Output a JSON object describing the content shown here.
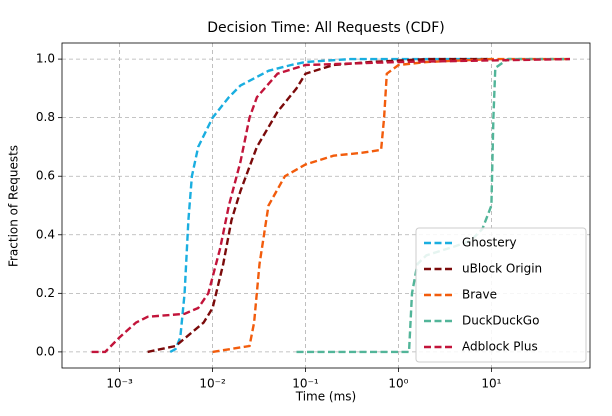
{
  "chart_data": {
    "type": "line",
    "title": "Decision Time: All Requests (CDF)",
    "x_label": "Time (ms)",
    "y_label": "Fraction of Requests",
    "x_scale": "log",
    "xlim": [
      0.00024,
      115
    ],
    "ylim": [
      -0.055,
      1.055
    ],
    "xticks": [
      {
        "value": 0.001,
        "label": "10⁻³"
      },
      {
        "value": 0.01,
        "label": "10⁻²"
      },
      {
        "value": 0.1,
        "label": "10⁻¹"
      },
      {
        "value": 1,
        "label": "10⁰"
      },
      {
        "value": 10,
        "label": "10¹"
      }
    ],
    "yticks": [
      {
        "value": 0,
        "label": "0.0"
      },
      {
        "value": 0.2,
        "label": "0.2"
      },
      {
        "value": 0.4,
        "label": "0.4"
      },
      {
        "value": 0.6,
        "label": "0.6"
      },
      {
        "value": 0.8,
        "label": "0.8"
      },
      {
        "value": 1,
        "label": "1.0"
      }
    ],
    "grid": true,
    "legend": "lower right",
    "series": [
      {
        "name": "Ghostery",
        "color": "#1aaee0",
        "x": [
          0.0035,
          0.004,
          0.0045,
          0.005,
          0.0055,
          0.006,
          0.007,
          0.01,
          0.015,
          0.02,
          0.04,
          0.07,
          0.1,
          0.3,
          10
        ],
        "values": [
          0,
          0.01,
          0.05,
          0.2,
          0.45,
          0.6,
          0.7,
          0.8,
          0.87,
          0.91,
          0.96,
          0.98,
          0.99,
          1,
          1
        ]
      },
      {
        "name": "uBlock Origin",
        "color": "#7b0a0a",
        "x": [
          0.002,
          0.004,
          0.008,
          0.01,
          0.013,
          0.016,
          0.02,
          0.03,
          0.05,
          0.08,
          0.1,
          0.2,
          0.5,
          2,
          10
        ],
        "values": [
          0,
          0.02,
          0.1,
          0.15,
          0.3,
          0.45,
          0.55,
          0.7,
          0.82,
          0.9,
          0.95,
          0.98,
          0.99,
          1,
          1
        ]
      },
      {
        "name": "Brave",
        "color": "#f25c0c",
        "x": [
          0.01,
          0.025,
          0.028,
          0.032,
          0.04,
          0.06,
          0.1,
          0.2,
          0.4,
          0.65,
          0.7,
          0.75,
          1,
          2,
          10,
          70
        ],
        "values": [
          0,
          0.02,
          0.1,
          0.3,
          0.5,
          0.6,
          0.64,
          0.67,
          0.68,
          0.69,
          0.8,
          0.95,
          0.98,
          0.99,
          1,
          1
        ]
      },
      {
        "name": "DuckDuckGo",
        "color": "#52b599",
        "x": [
          0.08,
          1.3,
          1.4,
          1.6,
          2,
          4,
          6,
          8,
          10,
          10.5,
          11,
          15,
          70
        ],
        "values": [
          0,
          0,
          0.2,
          0.3,
          0.33,
          0.36,
          0.38,
          0.42,
          0.5,
          0.8,
          0.97,
          1,
          1
        ]
      },
      {
        "name": "Adblock Plus",
        "color": "#c2143a",
        "x": [
          0.0005,
          0.0007,
          0.001,
          0.0015,
          0.002,
          0.005,
          0.007,
          0.009,
          0.012,
          0.015,
          0.02,
          0.025,
          0.03,
          0.05,
          0.1,
          1,
          70
        ],
        "values": [
          0,
          0,
          0.05,
          0.1,
          0.12,
          0.13,
          0.15,
          0.2,
          0.35,
          0.5,
          0.65,
          0.8,
          0.87,
          0.95,
          0.98,
          0.99,
          1
        ]
      }
    ]
  }
}
